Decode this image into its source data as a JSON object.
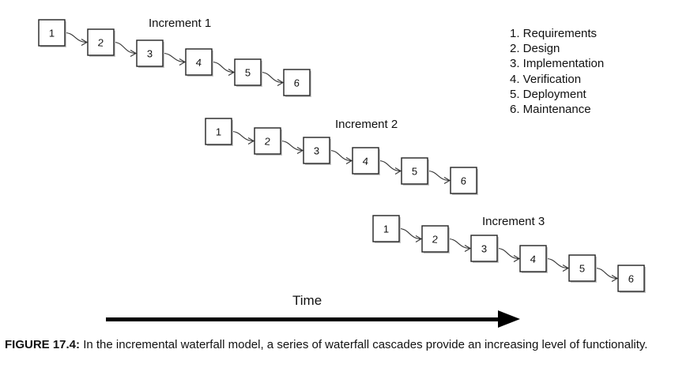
{
  "increments": [
    {
      "label": "Increment 1",
      "steps": [
        "1",
        "2",
        "3",
        "4",
        "5",
        "6"
      ]
    },
    {
      "label": "Increment 2",
      "steps": [
        "1",
        "2",
        "3",
        "4",
        "5",
        "6"
      ]
    },
    {
      "label": "Increment 3",
      "steps": [
        "1",
        "2",
        "3",
        "4",
        "5",
        "6"
      ]
    }
  ],
  "legend": [
    "1. Requirements",
    "2. Design",
    "3. Implementation",
    "4. Verification",
    "5. Deployment",
    "6. Maintenance"
  ],
  "time_label": "Time",
  "caption": {
    "figure_label": "FIGURE 17.4:",
    "text": " In the incremental waterfall model, a series of waterfall cascades provide an increasing level of functionality."
  },
  "colors": {
    "box_border": "#222222",
    "arrow": "#000000",
    "text": "#111111"
  }
}
